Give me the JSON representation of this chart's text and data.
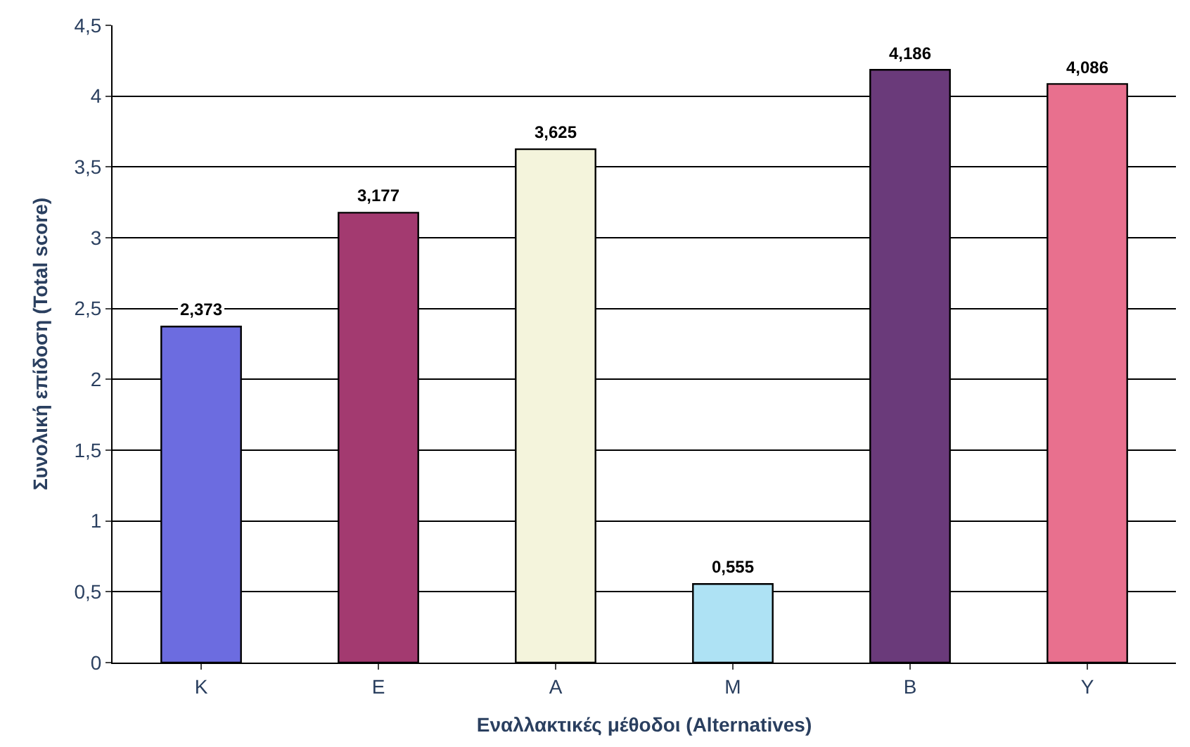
{
  "chart_data": {
    "type": "bar",
    "xlabel": "Εναλλακτικές μέθοδοι (Alternatives)",
    "ylabel": "Συνολική επίδοση (Total score)",
    "categories": [
      "Κ",
      "Ε",
      "Α",
      "Μ",
      "Β",
      "Υ"
    ],
    "values": [
      2.373,
      3.177,
      3.625,
      0.555,
      4.186,
      4.086
    ],
    "colors": [
      "#6c6ce0",
      "#a33a70",
      "#f4f4dc",
      "#aee2f4",
      "#6a3a7a",
      "#e8708e"
    ],
    "value_labels": [
      "2,373",
      "3,177",
      "3,625",
      "0,555",
      "4,186",
      "4,086"
    ],
    "ylim": [
      0,
      4.5
    ],
    "yticks": [
      0,
      {
        "value": 0.5,
        "label": "0,5"
      },
      1,
      {
        "value": 1.5,
        "label": "1,5"
      },
      2,
      {
        "value": 2.5,
        "label": "2,5"
      },
      3,
      {
        "value": 3.5,
        "label": "3,5"
      },
      4,
      {
        "value": 4.5,
        "label": "4,5"
      }
    ],
    "grid": "y",
    "legend": false
  }
}
